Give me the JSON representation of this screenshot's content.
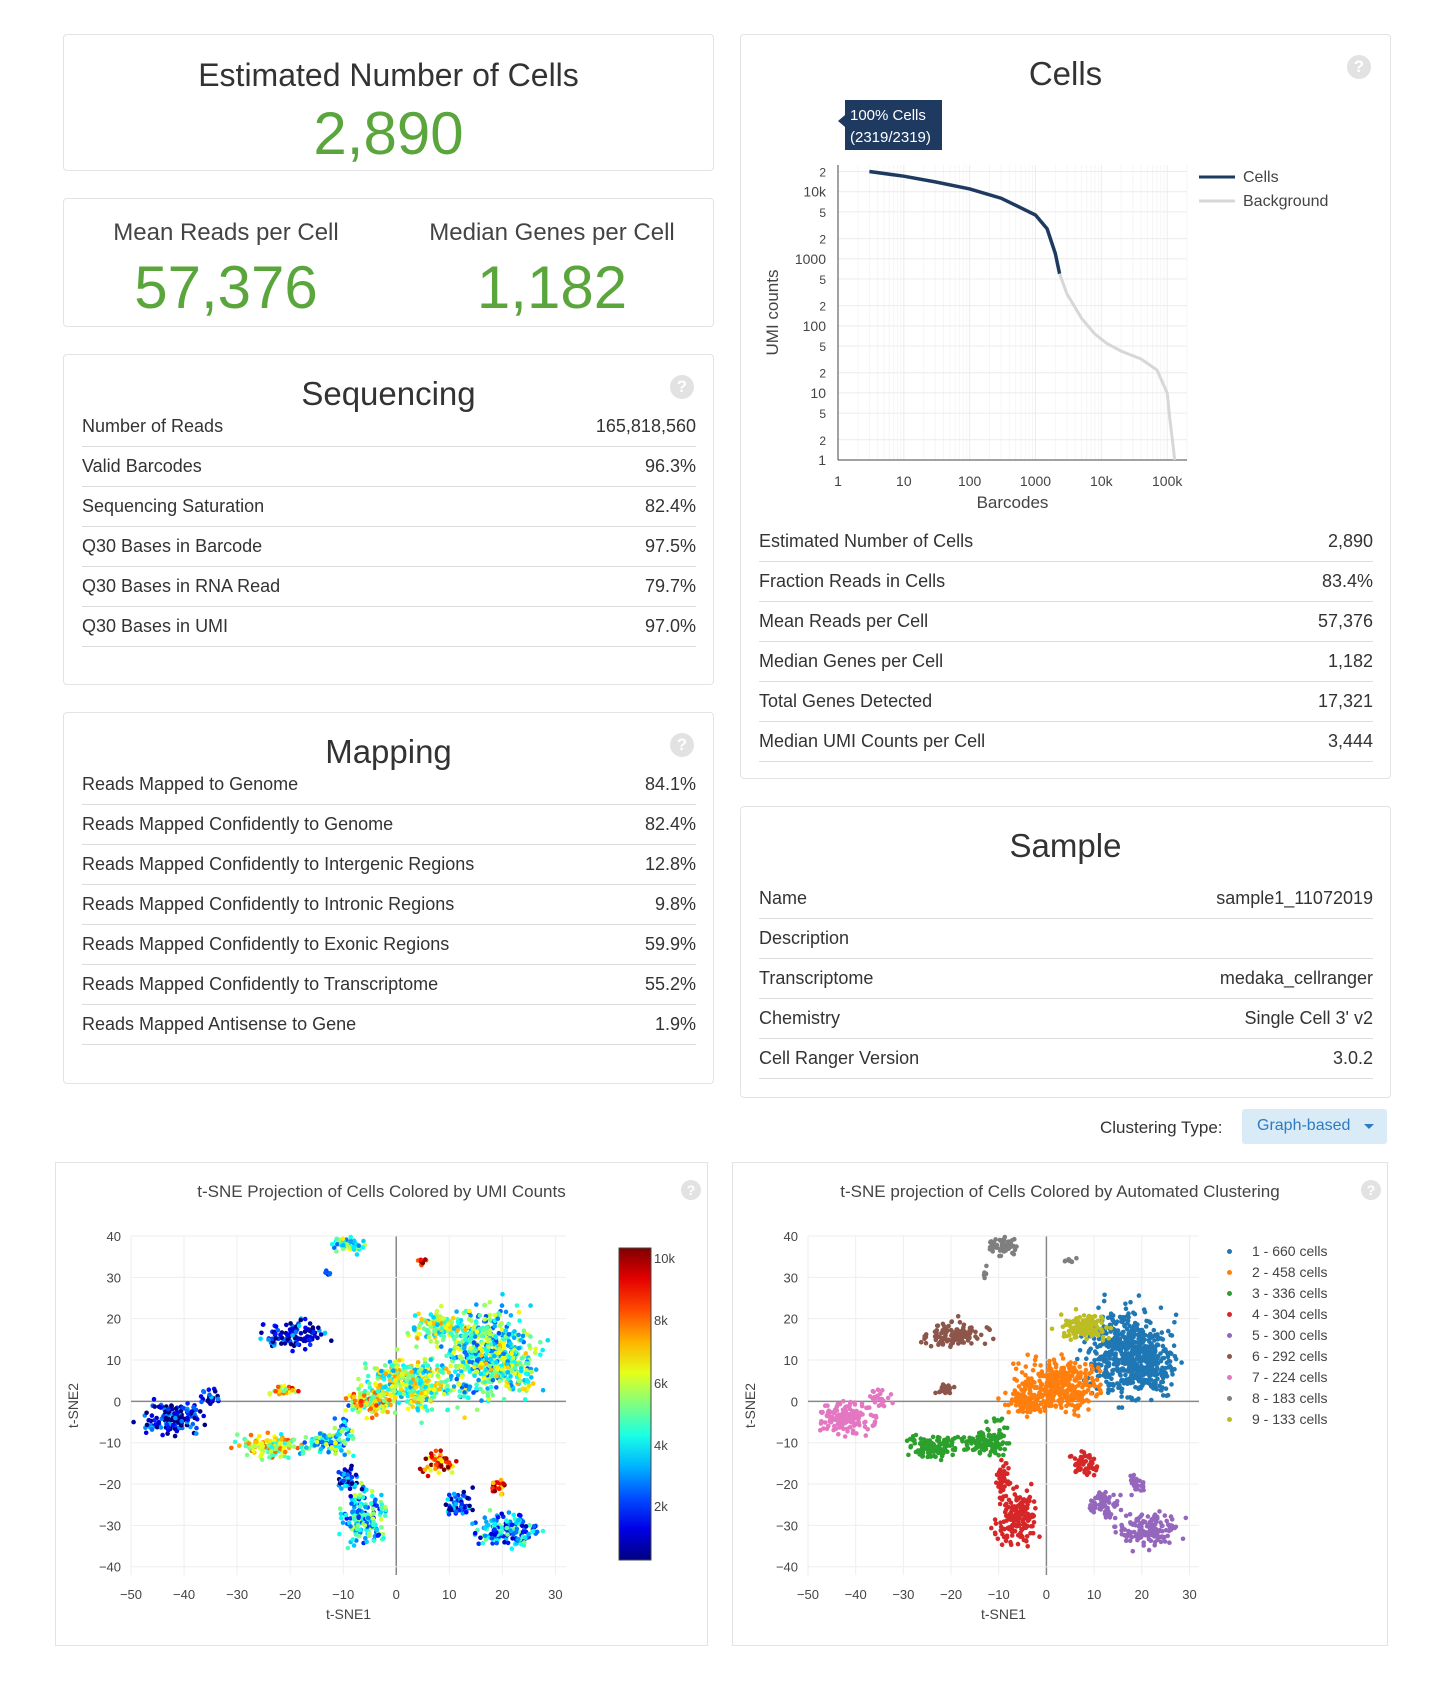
{
  "estimated_cells": {
    "title": "Estimated Number of Cells",
    "value": "2,890"
  },
  "mean_reads": {
    "label": "Mean Reads per Cell",
    "value": "57,376"
  },
  "median_genes": {
    "label": "Median Genes per Cell",
    "value": "1,182"
  },
  "sequencing": {
    "title": "Sequencing",
    "help": "?",
    "rows": [
      {
        "label": "Number of Reads",
        "value": "165,818,560"
      },
      {
        "label": "Valid Barcodes",
        "value": "96.3%"
      },
      {
        "label": "Sequencing Saturation",
        "value": "82.4%"
      },
      {
        "label": "Q30 Bases in Barcode",
        "value": "97.5%"
      },
      {
        "label": "Q30 Bases in RNA Read",
        "value": "79.7%"
      },
      {
        "label": "Q30 Bases in UMI",
        "value": "97.0%"
      }
    ]
  },
  "mapping": {
    "title": "Mapping",
    "help": "?",
    "rows": [
      {
        "label": "Reads Mapped to Genome",
        "value": "84.1%"
      },
      {
        "label": "Reads Mapped Confidently to Genome",
        "value": "82.4%"
      },
      {
        "label": "Reads Mapped Confidently to Intergenic Regions",
        "value": "12.8%"
      },
      {
        "label": "Reads Mapped Confidently to Intronic Regions",
        "value": "9.8%"
      },
      {
        "label": "Reads Mapped Confidently to Exonic Regions",
        "value": "59.9%"
      },
      {
        "label": "Reads Mapped Confidently to Transcriptome",
        "value": "55.2%"
      },
      {
        "label": "Reads Mapped Antisense to Gene",
        "value": "1.9%"
      }
    ]
  },
  "cells": {
    "title": "Cells",
    "help": "?",
    "tooltip_line1": "100% Cells",
    "tooltip_line2": "(2319/2319)",
    "rows": [
      {
        "label": "Estimated Number of Cells",
        "value": "2,890"
      },
      {
        "label": "Fraction Reads in Cells",
        "value": "83.4%"
      },
      {
        "label": "Mean Reads per Cell",
        "value": "57,376"
      },
      {
        "label": "Median Genes per Cell",
        "value": "1,182"
      },
      {
        "label": "Total Genes Detected",
        "value": "17,321"
      },
      {
        "label": "Median UMI Counts per Cell",
        "value": "3,444"
      }
    ]
  },
  "sample": {
    "title": "Sample",
    "rows": [
      {
        "label": "Name",
        "value": "sample1_11072019"
      },
      {
        "label": "Description",
        "value": ""
      },
      {
        "label": "Transcriptome",
        "value": "medaka_cellranger"
      },
      {
        "label": "Chemistry",
        "value": "Single Cell 3' v2"
      },
      {
        "label": "Cell Ranger Version",
        "value": "3.0.2"
      }
    ]
  },
  "clustering": {
    "label": "Clustering Type:",
    "selected": "Graph-based"
  },
  "colors": {
    "accent_green": "#5aa63d",
    "cells_line": "#1f3a60",
    "background_line": "#d7d7d7",
    "clusters": [
      "#1f77b4",
      "#ff7f0e",
      "#2ca02c",
      "#d62728",
      "#9467bd",
      "#8c564b",
      "#e377c2",
      "#7f7f7f",
      "#bcbd22"
    ]
  },
  "chart_data": [
    {
      "type": "line",
      "title": "",
      "xlabel": "Barcodes",
      "ylabel": "UMI counts",
      "x_scale": "log",
      "y_scale": "log",
      "x_ticks": [
        "1",
        "10",
        "100",
        "1000",
        "10k",
        "100k"
      ],
      "y_ticks": [
        "1",
        "2",
        "5",
        "10",
        "2",
        "5",
        "100",
        "2",
        "5",
        "1000",
        "2",
        "5",
        "10k",
        "2"
      ],
      "xlim": [
        1,
        200000
      ],
      "ylim": [
        1,
        25000
      ],
      "legend_position": "top-right",
      "series": [
        {
          "name": "Cells",
          "x": [
            3,
            10,
            30,
            100,
            300,
            1000,
            1500,
            2000,
            2319
          ],
          "y": [
            20000,
            17000,
            14000,
            11000,
            8000,
            4500,
            2800,
            1200,
            600
          ]
        },
        {
          "name": "Background",
          "x": [
            2319,
            3000,
            5000,
            8000,
            12000,
            20000,
            40000,
            70000,
            100000,
            110000,
            120000,
            130000
          ],
          "y": [
            600,
            300,
            130,
            75,
            55,
            42,
            32,
            22,
            10,
            4,
            2,
            1
          ]
        }
      ]
    },
    {
      "type": "scatter",
      "title": "t-SNE Projection of Cells Colored by UMI Counts",
      "xlabel": "t-SNE1",
      "ylabel": "t-SNE2",
      "xlim": [
        -50,
        32
      ],
      "ylim": [
        -42,
        40
      ],
      "x_ticks": [
        -50,
        -40,
        -30,
        -20,
        -10,
        0,
        10,
        20,
        30
      ],
      "y_ticks": [
        40,
        30,
        20,
        10,
        0,
        -10,
        -20,
        -30,
        -40
      ],
      "colorscale_ticks": [
        "10k",
        "8k",
        "6k",
        "4k",
        "2k"
      ],
      "grid": true
    },
    {
      "type": "scatter",
      "title": "t-SNE projection of Cells Colored by Automated Clustering",
      "xlabel": "t-SNE1",
      "ylabel": "t-SNE2",
      "xlim": [
        -50,
        32
      ],
      "ylim": [
        -42,
        40
      ],
      "x_ticks": [
        -50,
        -40,
        -30,
        -20,
        -10,
        0,
        10,
        20,
        30
      ],
      "y_ticks": [
        40,
        30,
        20,
        10,
        0,
        -10,
        -20,
        -30,
        -40
      ],
      "legend_position": "right",
      "series": [
        {
          "name": "1 - 660 cells",
          "count": 660
        },
        {
          "name": "2 - 458 cells",
          "count": 458
        },
        {
          "name": "3 - 336 cells",
          "count": 336
        },
        {
          "name": "4 - 304 cells",
          "count": 304
        },
        {
          "name": "5 - 300 cells",
          "count": 300
        },
        {
          "name": "6 - 292 cells",
          "count": 292
        },
        {
          "name": "7 - 224 cells",
          "count": 224
        },
        {
          "name": "8 - 183 cells",
          "count": 183
        },
        {
          "name": "9 - 133 cells",
          "count": 133
        }
      ]
    }
  ]
}
